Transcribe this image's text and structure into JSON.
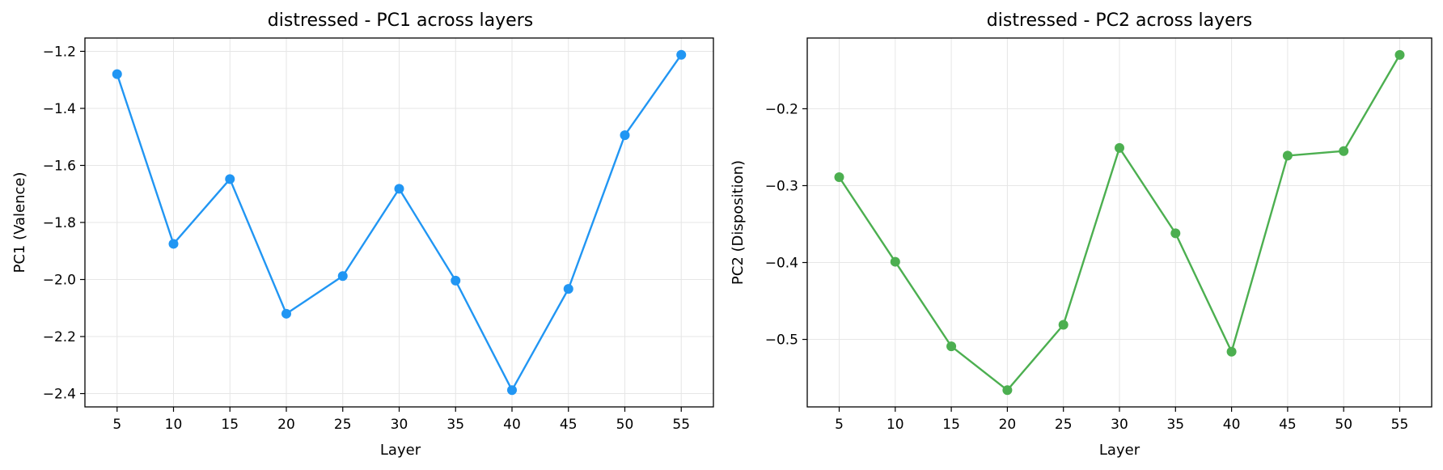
{
  "chart_data": [
    {
      "type": "line",
      "title": "distressed - PC1 across layers",
      "xlabel": "Layer",
      "ylabel": "PC1 (Valence)",
      "color": "#2196f3",
      "grid": true,
      "x": [
        5,
        10,
        15,
        20,
        25,
        30,
        35,
        40,
        45,
        50,
        55
      ],
      "y": [
        -1.28,
        -1.875,
        -1.648,
        -2.12,
        -1.988,
        -1.682,
        -2.004,
        -2.388,
        -2.033,
        -1.494,
        -1.212
      ],
      "xticks": [
        "5",
        "10",
        "15",
        "20",
        "25",
        "30",
        "35",
        "40",
        "45",
        "50",
        "55"
      ],
      "yticks": [
        -2.4,
        -2.2,
        -2.0,
        -1.8,
        -1.6,
        -1.4,
        -1.2
      ],
      "ytick_labels": [
        "−2.4",
        "−2.2",
        "−2.0",
        "−1.8",
        "−1.6",
        "−1.4",
        "−1.2"
      ],
      "xlim": [
        2.15,
        57.85
      ],
      "ylim": [
        -2.4467,
        -1.1533
      ]
    },
    {
      "type": "line",
      "title": "distressed - PC2 across layers",
      "xlabel": "Layer",
      "ylabel": "PC2 (Disposition)",
      "color": "#4caf50",
      "grid": true,
      "x": [
        5,
        10,
        15,
        20,
        25,
        30,
        35,
        40,
        45,
        50,
        55
      ],
      "y": [
        -0.289,
        -0.399,
        -0.509,
        -0.566,
        -0.481,
        -0.251,
        -0.362,
        -0.516,
        -0.261,
        -0.255,
        -0.13
      ],
      "xticks": [
        "5",
        "10",
        "15",
        "20",
        "25",
        "30",
        "35",
        "40",
        "45",
        "50",
        "55"
      ],
      "yticks": [
        -0.5,
        -0.4,
        -0.3,
        -0.2
      ],
      "ytick_labels": [
        "−0.5",
        "−0.4",
        "−0.3",
        "−0.2"
      ],
      "xlim": [
        2.15,
        57.85
      ],
      "ylim": [
        -0.5878,
        -0.108
      ]
    }
  ]
}
